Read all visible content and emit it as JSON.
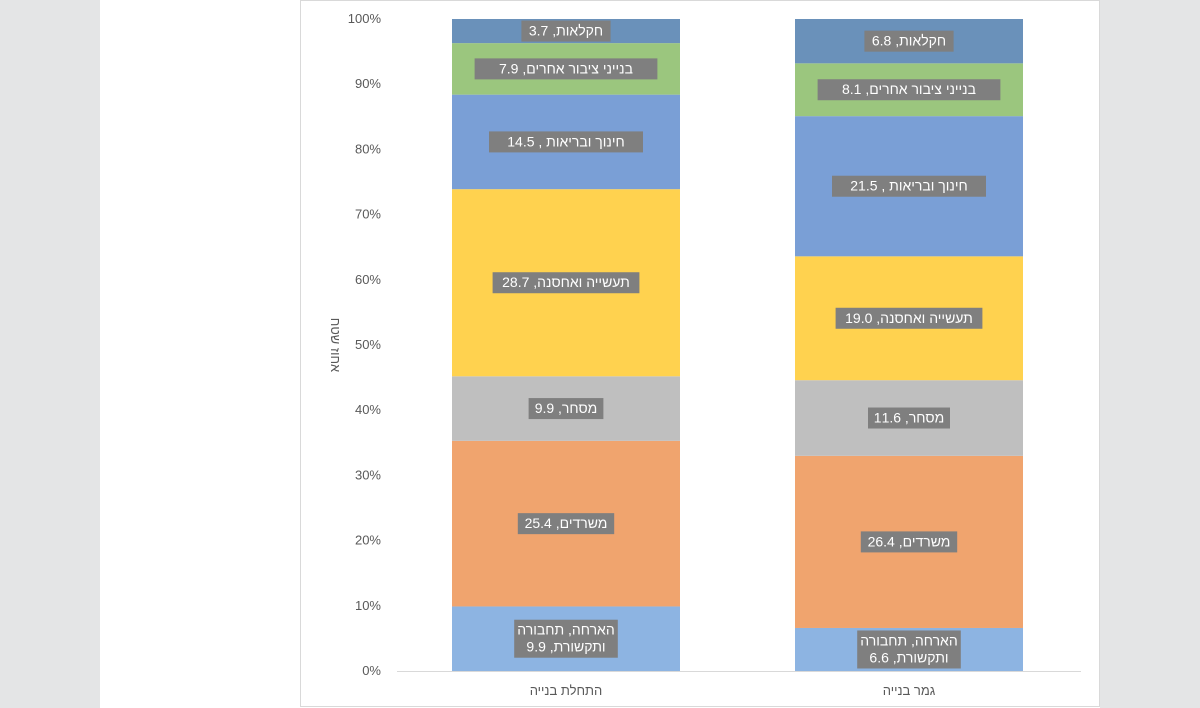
{
  "chart_data": {
    "type": "bar",
    "stacked": "percent",
    "ylabel": "אחוז שטח",
    "y_ticks": [
      "0%",
      "10%",
      "20%",
      "30%",
      "40%",
      "50%",
      "60%",
      "70%",
      "80%",
      "90%",
      "100%"
    ],
    "ylim": [
      0,
      100
    ],
    "grid": false,
    "categories": [
      "התחלת בנייה",
      "גמר בנייה"
    ],
    "series": [
      {
        "name": "הארחה, תחבורה ותקשורת",
        "color": "#8db4e2",
        "values": [
          9.9,
          6.6
        ],
        "labels": [
          [
            "הארחה, תחבורה",
            "ותקשורת, 9.9"
          ],
          [
            "הארחה, תחבורה",
            "ותקשורת, 6.6"
          ]
        ]
      },
      {
        "name": "משרדים",
        "color": "#f0a46e",
        "values": [
          25.4,
          26.4
        ],
        "labels": [
          [
            "משרדים, 25.4"
          ],
          [
            "משרדים, 26.4"
          ]
        ]
      },
      {
        "name": "מסחר",
        "color": "#bfbfbf",
        "values": [
          9.9,
          11.6
        ],
        "labels": [
          [
            "מסחר, 9.9"
          ],
          [
            "מסחר, 11.6"
          ]
        ]
      },
      {
        "name": "תעשייה ואחסנה",
        "color": "#ffd24f",
        "values": [
          28.7,
          19.0
        ],
        "labels": [
          [
            "תעשייה ואחסנה, 28.7"
          ],
          [
            "תעשייה ואחסנה, 19.0"
          ]
        ]
      },
      {
        "name": "חינוך ובריאות",
        "color": "#7a9fd6",
        "values": [
          14.5,
          21.5
        ],
        "labels": [
          [
            "חינוך ובריאות , 14.5"
          ],
          [
            "חינוך ובריאות , 21.5"
          ]
        ]
      },
      {
        "name": "בנייני ציבור אחרים",
        "color": "#9bc67e",
        "values": [
          7.9,
          8.1
        ],
        "labels": [
          [
            "בנייני  ציבור אחרים, 7.9"
          ],
          [
            "בנייני  ציבור אחרים, 8.1"
          ]
        ]
      },
      {
        "name": "חקלאות",
        "color": "#6a91ba",
        "values": [
          3.7,
          6.8
        ],
        "labels": [
          [
            "חקלאות, 3.7"
          ],
          [
            "חקלאות, 6.8"
          ]
        ]
      }
    ]
  }
}
